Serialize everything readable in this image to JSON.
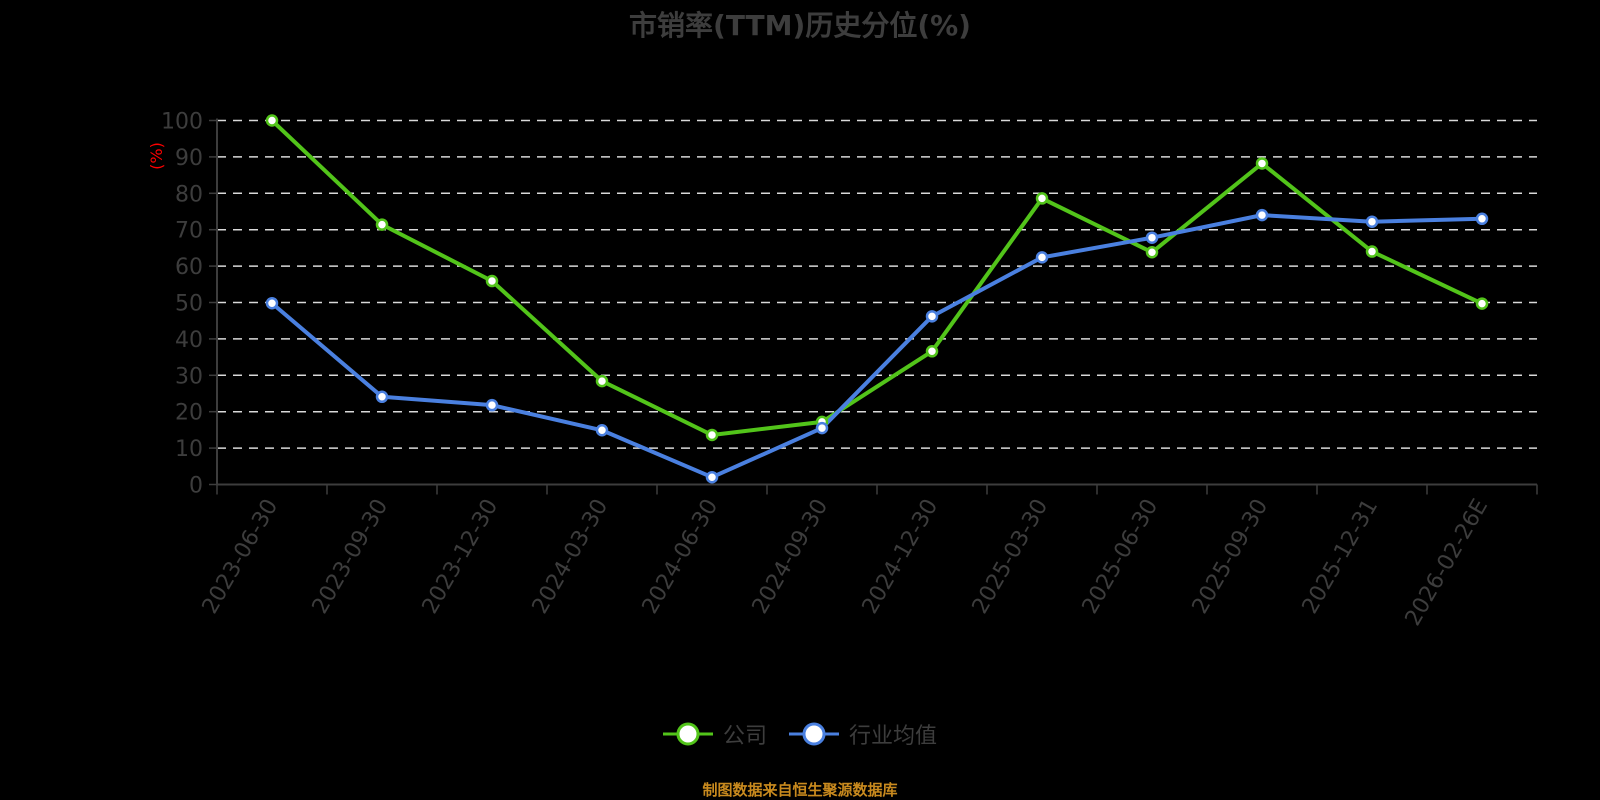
{
  "title": "市销率(TTM)历史分位(%)",
  "y_axis_unit": "(%)",
  "legend": [
    {
      "label": "公司",
      "color": "#52c41a"
    },
    {
      "label": "行业均值",
      "color": "#4a80e0"
    }
  ],
  "source": "制图数据来自恒生聚源数据库",
  "colors": {
    "company": "#52c41a",
    "industry": "#4a80e0",
    "axis": "#3d3d3d",
    "grid": "#d9d9d9",
    "unit": "#ff0000",
    "source": "#c98a1e"
  },
  "chart_data": {
    "type": "line",
    "title": "市销率(TTM)历史分位(%)",
    "xlabel": "",
    "ylabel": "(%)",
    "ylim": [
      0,
      100
    ],
    "yticks": [
      0,
      10,
      20,
      30,
      40,
      50,
      60,
      70,
      80,
      90,
      100
    ],
    "grid": true,
    "legend_position": "bottom",
    "categories": [
      "2023-06-30",
      "2023-09-30",
      "2023-12-30",
      "2024-03-30",
      "2024-06-30",
      "2024-09-30",
      "2024-12-30",
      "2025-03-30",
      "2025-06-30",
      "2025-09-30",
      "2025-12-31",
      "2026-02-26E"
    ],
    "series": [
      {
        "name": "公司",
        "values": [
          100.0,
          71.4,
          55.9,
          28.4,
          13.6,
          17.2,
          36.6,
          78.6,
          63.8,
          88.2,
          64.0,
          49.7
        ]
      },
      {
        "name": "行业均值",
        "values": [
          49.8,
          24.1,
          21.8,
          14.9,
          2.0,
          15.5,
          46.2,
          62.4,
          67.8,
          74.0,
          72.2,
          73.0
        ]
      }
    ]
  }
}
